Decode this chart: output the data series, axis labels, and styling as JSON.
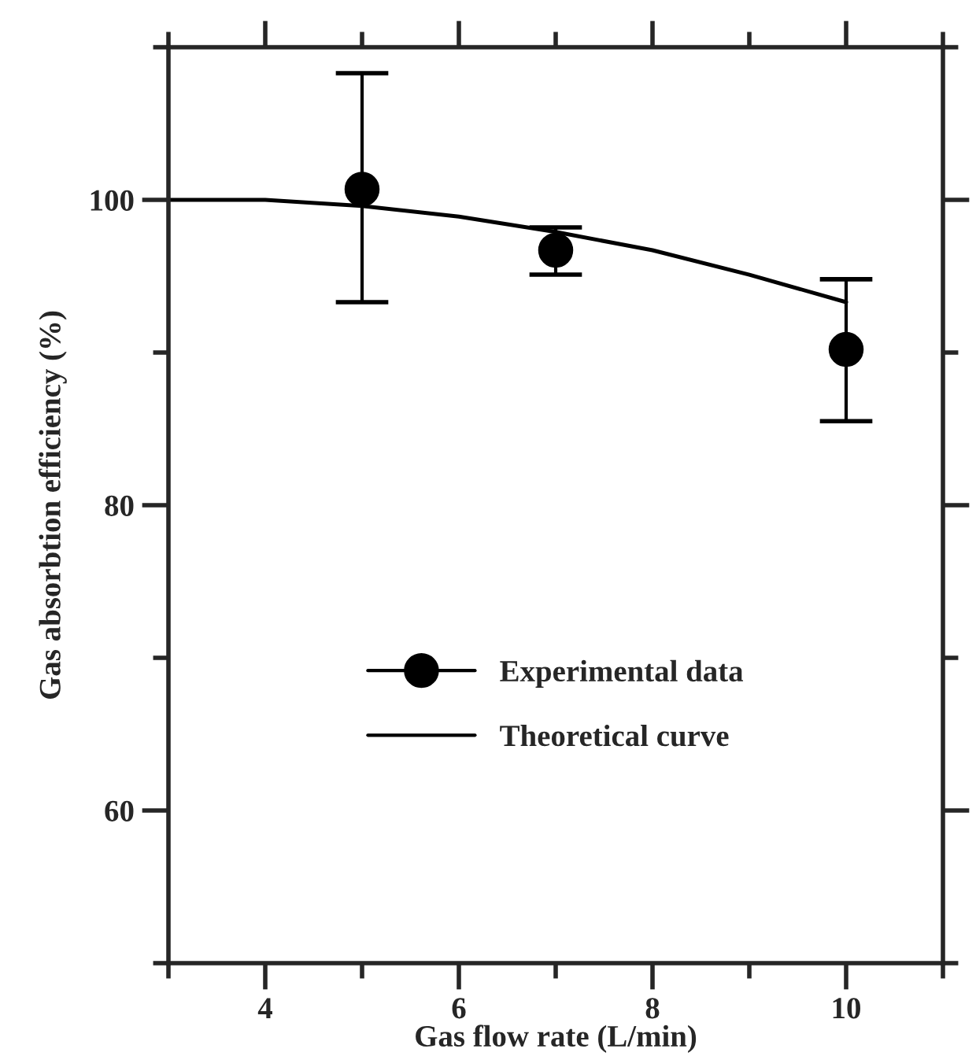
{
  "chart_data": {
    "type": "scatter",
    "xlabel": "Gas flow rate (L/min)",
    "ylabel": "Gas absorbtion efficiency (%)",
    "xlim": [
      3,
      11
    ],
    "xticks": [
      4,
      6,
      8,
      10
    ],
    "ylim": [
      50,
      110
    ],
    "yticks": [
      60,
      80,
      100
    ],
    "legend": "bottom",
    "grid": false,
    "series": [
      {
        "name": "Experimental data",
        "color": "#000000",
        "marker": "circle",
        "x": [
          5,
          7,
          10
        ],
        "values": [
          100.7,
          96.7,
          90.2
        ],
        "errors": [
          [
            93.3,
            108.3
          ],
          [
            95.1,
            98.2
          ],
          [
            85.5,
            94.8
          ]
        ]
      },
      {
        "name": "Theoretical curve",
        "type": "line",
        "color": "#000000",
        "marker": "none",
        "line_style": "solid",
        "x": [
          3,
          4,
          5,
          6,
          7,
          8,
          9,
          10
        ],
        "values": [
          100,
          100,
          99.6,
          98.9,
          97.9,
          96.7,
          95.1,
          93.3
        ]
      }
    ]
  }
}
